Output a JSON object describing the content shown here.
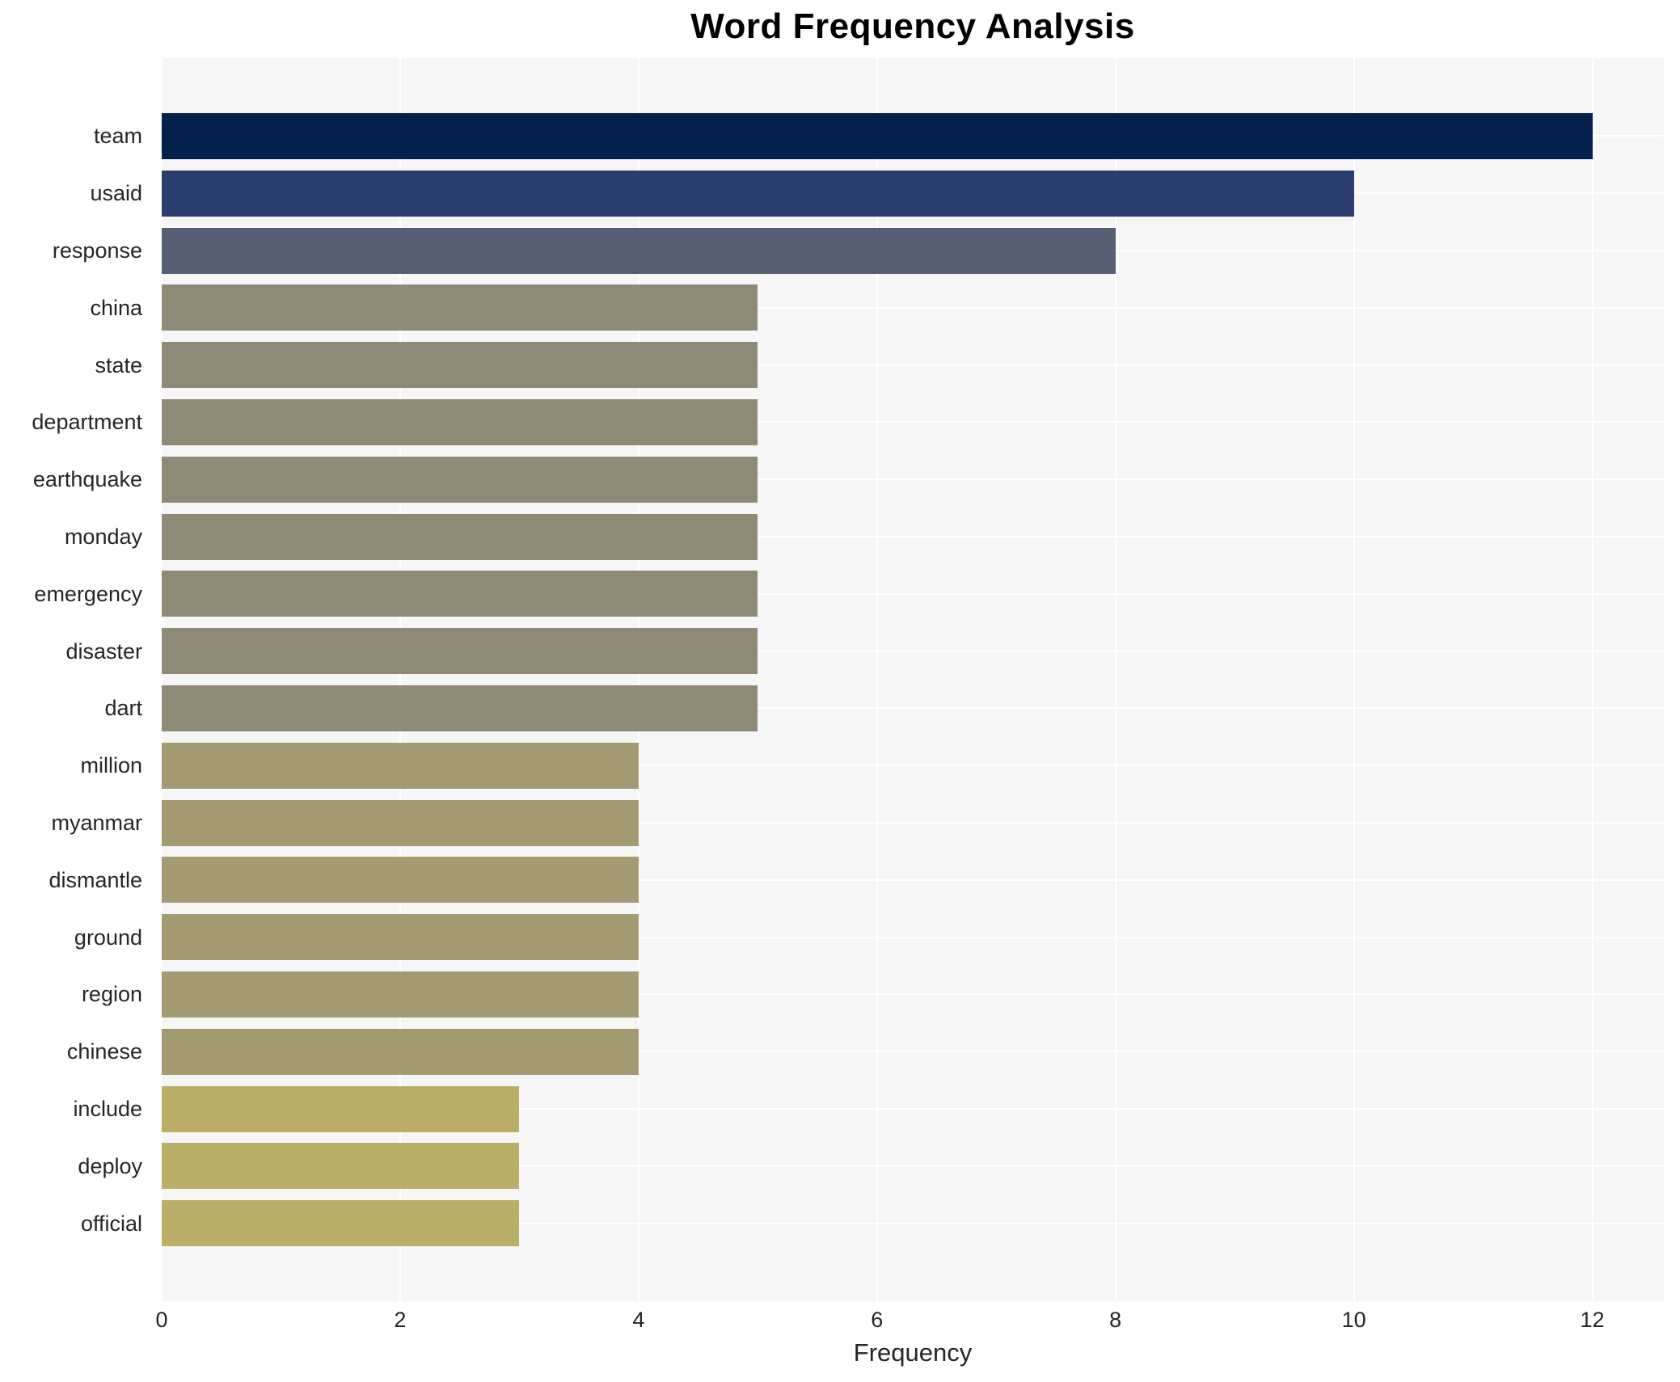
{
  "title": "Word Frequency Analysis",
  "chart_data": {
    "type": "bar",
    "orientation": "horizontal",
    "title": "Word Frequency Analysis",
    "xlabel": "Frequency",
    "ylabel": "",
    "categories": [
      "team",
      "usaid",
      "response",
      "china",
      "state",
      "department",
      "earthquake",
      "monday",
      "emergency",
      "disaster",
      "dart",
      "million",
      "myanmar",
      "dismantle",
      "ground",
      "region",
      "chinese",
      "include",
      "deploy",
      "official"
    ],
    "values": [
      12,
      10,
      8,
      5,
      5,
      5,
      5,
      5,
      5,
      5,
      5,
      4,
      4,
      4,
      4,
      4,
      4,
      3,
      3,
      3
    ],
    "bar_colors": [
      "#04214e",
      "#2b3f6e",
      "#565f73",
      "#8f8a76",
      "#8f8a76",
      "#8f8a76",
      "#8f8a76",
      "#8f8a76",
      "#8f8a76",
      "#8f8a76",
      "#8f8a76",
      "#a49b72",
      "#a49b72",
      "#a49b72",
      "#a49b72",
      "#a49b72",
      "#a49b72",
      "#bbae69",
      "#bbae69",
      "#bbae69"
    ],
    "xticks": [
      0,
      2,
      4,
      6,
      8,
      10,
      12
    ],
    "xlim": [
      0,
      12.6
    ],
    "grid": true,
    "legend": "none",
    "plot_background": "#f6f6f7",
    "grid_color": "#ffffff",
    "figure_background": "#ffffff",
    "text_color": "#262626"
  }
}
